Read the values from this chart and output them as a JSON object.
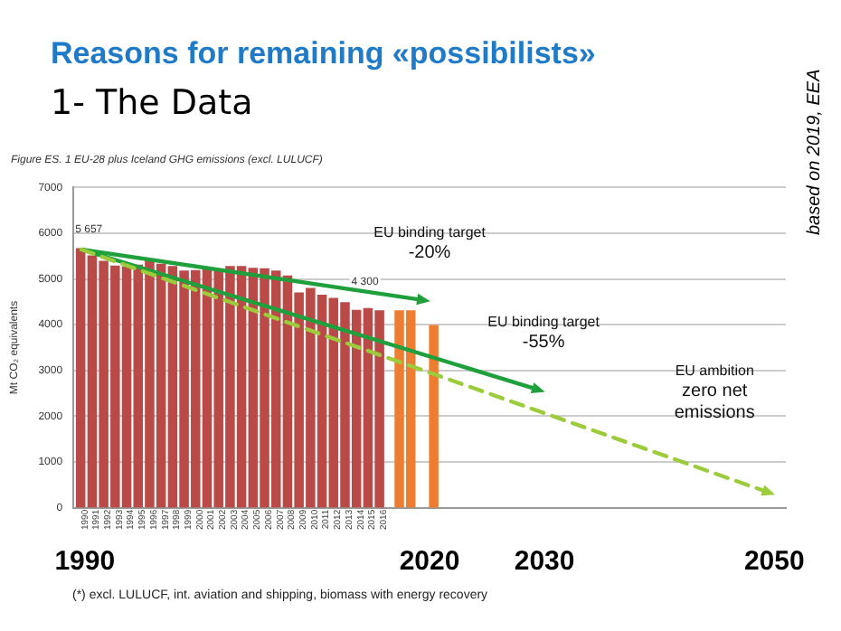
{
  "chart_data": {
    "type": "bar",
    "title": "Reasons for remaining «possibilists»",
    "subtitle": "1- The Data",
    "ylabel": "Mt CO₂ equivalents",
    "annotations": [
      "Figure ES. 1  EU-28 plus Iceland GHG emissions (excl. LULUCF)",
      "based on 2019, EEA",
      "(*) excl. LULUCF, int. aviation and shipping, biomass with energy recovery",
      "EU binding target\n-20%",
      "EU binding target\n-55%",
      "EU ambition\nzero net\nemissions"
    ],
    "x": [
      1990,
      1991,
      1992,
      1993,
      1994,
      1995,
      1996,
      1997,
      1998,
      1999,
      2000,
      2001,
      2002,
      2003,
      2004,
      2005,
      2006,
      2007,
      2008,
      2009,
      2010,
      2011,
      2012,
      2013,
      2014,
      2015,
      2016
    ],
    "series": [
      {
        "color": "#b94a48",
        "values": [
          5657,
          5500,
          5380,
          5280,
          5260,
          5300,
          5400,
          5320,
          5270,
          5170,
          5180,
          5250,
          5200,
          5270,
          5270,
          5230,
          5220,
          5170,
          5060,
          4690,
          4790,
          4640,
          4570,
          4480,
          4310,
          4350,
          4300
        ],
        "value_labels": [
          "5 657",
          null,
          null,
          null,
          null,
          null,
          null,
          null,
          null,
          null,
          null,
          null,
          null,
          null,
          null,
          null,
          null,
          null,
          null,
          null,
          null,
          null,
          null,
          null,
          null,
          null,
          "4 300"
        ]
      },
      {
        "color": "#ed7d31",
        "x": [
          2017,
          2018,
          2020
        ],
        "values": [
          4300,
          4300,
          3980
        ]
      }
    ],
    "xlim": [
      1989,
      2051
    ],
    "xticks": [
      1990,
      1991,
      1992,
      1993,
      1994,
      1995,
      1996,
      1997,
      1998,
      1999,
      2000,
      2001,
      2002,
      2003,
      2004,
      2005,
      2006,
      2007,
      2008,
      2009,
      2010,
      2011,
      2012,
      2013,
      2014,
      2015,
      2016
    ],
    "x2lim": [
      1989,
      2051
    ],
    "x2ticks": [
      1990,
      2020,
      2030,
      2050
    ],
    "ylim": [
      0,
      7000
    ],
    "yticks": [
      0,
      1000,
      2000,
      3000,
      4000,
      5000,
      6000,
      7000
    ],
    "grid": "y",
    "legend": false
  }
}
